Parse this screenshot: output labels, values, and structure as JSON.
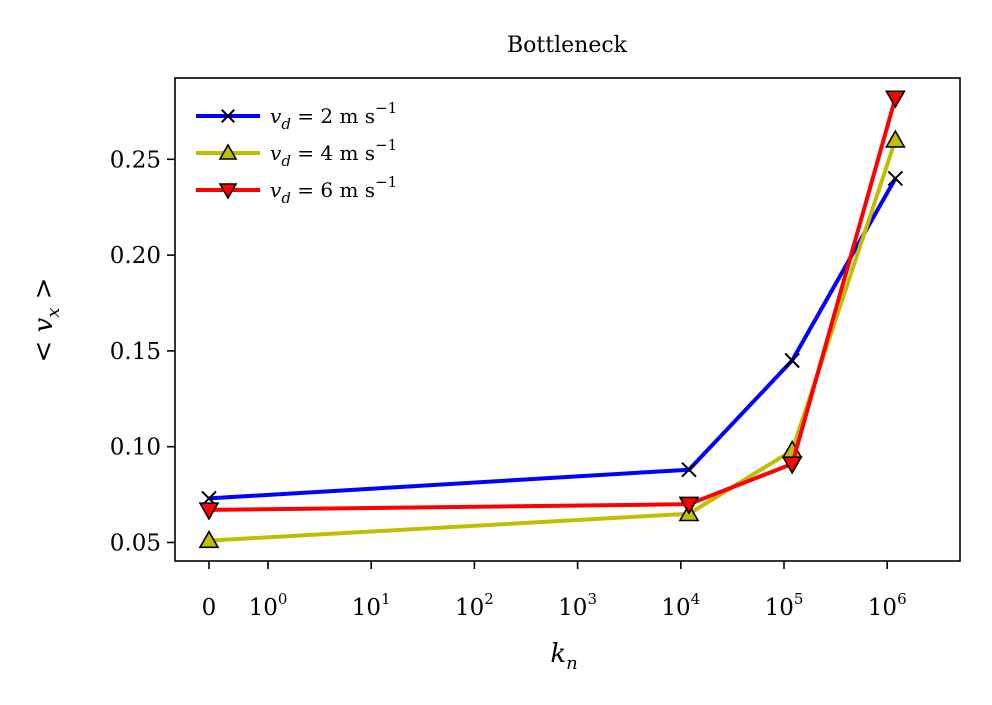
{
  "chart_data": {
    "type": "line",
    "title": "Bottleneck",
    "xlabel": "k_n",
    "ylabel": "< v_x >",
    "x_scale": "symlog",
    "x_ticks": [
      {
        "value": 0,
        "base": "0",
        "exp": ""
      },
      {
        "value": 1,
        "base": "10",
        "exp": "0"
      },
      {
        "value": 10,
        "base": "10",
        "exp": "1"
      },
      {
        "value": 100,
        "base": "10",
        "exp": "2"
      },
      {
        "value": 1000,
        "base": "10",
        "exp": "3"
      },
      {
        "value": 10000,
        "base": "10",
        "exp": "4"
      },
      {
        "value": 100000,
        "base": "10",
        "exp": "5"
      },
      {
        "value": 1000000,
        "base": "10",
        "exp": "6"
      }
    ],
    "y_ticks": [
      0.05,
      0.1,
      0.15,
      0.2,
      0.25
    ],
    "y_tick_labels": [
      "0.05",
      "0.10",
      "0.15",
      "0.20",
      "0.25"
    ],
    "ylim": [
      0.04,
      0.29
    ],
    "legend_position": "upper-left",
    "grid": false,
    "series": [
      {
        "name": "v_d = 2 m s^-1",
        "legend": {
          "var": "v",
          "sub": "d",
          "rest": " = 2 m s",
          "exp": "−1"
        },
        "color": "#0000ff",
        "marker": "x",
        "x": [
          0,
          12000,
          120000,
          1200000
        ],
        "y": [
          0.073,
          0.088,
          0.145,
          0.24
        ]
      },
      {
        "name": "v_d = 4 m s^-1",
        "legend": {
          "var": "v",
          "sub": "d",
          "rest": " = 4 m s",
          "exp": "−1"
        },
        "color": "#bfbf00",
        "marker": "triangle-up",
        "x": [
          0,
          12000,
          120000,
          1200000
        ],
        "y": [
          0.051,
          0.065,
          0.098,
          0.26
        ]
      },
      {
        "name": "v_d = 6 m s^-1",
        "legend": {
          "var": "v",
          "sub": "d",
          "rest": " = 6 m s",
          "exp": "−1"
        },
        "color": "#ff0000",
        "marker": "triangle-down",
        "x": [
          0,
          12000,
          120000,
          1200000
        ],
        "y": [
          0.067,
          0.07,
          0.091,
          0.282
        ]
      }
    ]
  }
}
